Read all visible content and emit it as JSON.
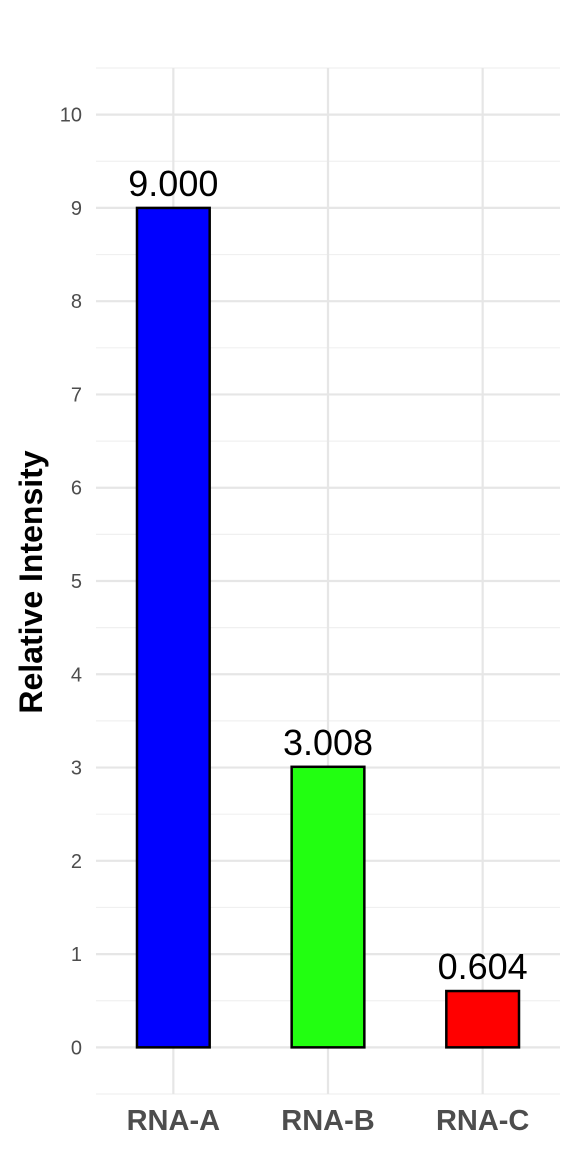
{
  "chart_data": {
    "type": "bar",
    "title": "",
    "xlabel": "",
    "ylabel": "Relative Intensity",
    "categories": [
      "RNA-A",
      "RNA-B",
      "RNA-C"
    ],
    "values": [
      9.0,
      3.008,
      0.604
    ],
    "data_labels": [
      "9.000",
      "3.008",
      "0.604"
    ],
    "bar_colors": [
      "#0000ff",
      "#22ff11",
      "#ff0000"
    ],
    "ylim": [
      -0.5,
      10.5
    ],
    "yticks": [
      0,
      1,
      2,
      3,
      4,
      5,
      6,
      7,
      8,
      9,
      10
    ],
    "grid": true,
    "legend": "none"
  }
}
